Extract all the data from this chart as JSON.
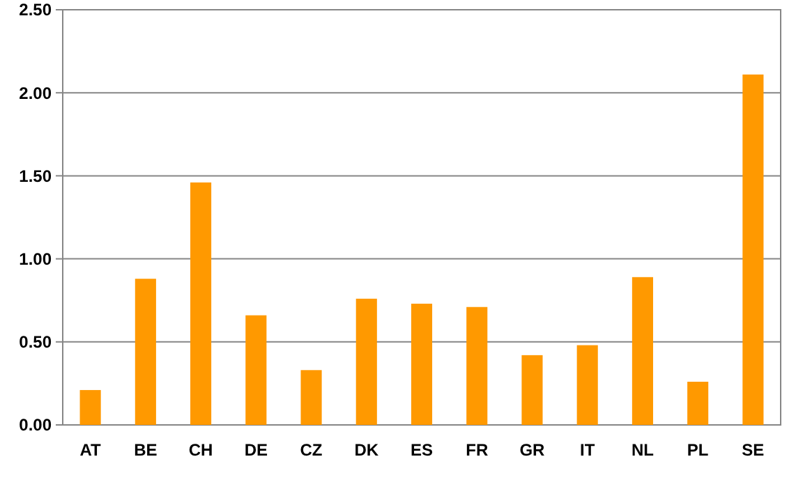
{
  "chart_data": {
    "type": "bar",
    "categories": [
      "AT",
      "BE",
      "CH",
      "DE",
      "CZ",
      "DK",
      "ES",
      "FR",
      "GR",
      "IT",
      "NL",
      "PL",
      "SE"
    ],
    "values": [
      0.21,
      0.88,
      1.46,
      0.66,
      0.33,
      0.76,
      0.73,
      0.71,
      0.42,
      0.48,
      0.89,
      0.26,
      2.11
    ],
    "color": "#ff9900",
    "ylim": [
      0,
      2.5
    ],
    "yticks": [
      {
        "value": 0,
        "label": "0.00"
      },
      {
        "value": 0.5,
        "label": "0.50"
      },
      {
        "value": 1,
        "label": "1.00"
      },
      {
        "value": 1.5,
        "label": "1.50"
      },
      {
        "value": 2,
        "label": "2.00"
      },
      {
        "value": 2.5,
        "label": "2.50"
      }
    ],
    "grid": "y"
  }
}
